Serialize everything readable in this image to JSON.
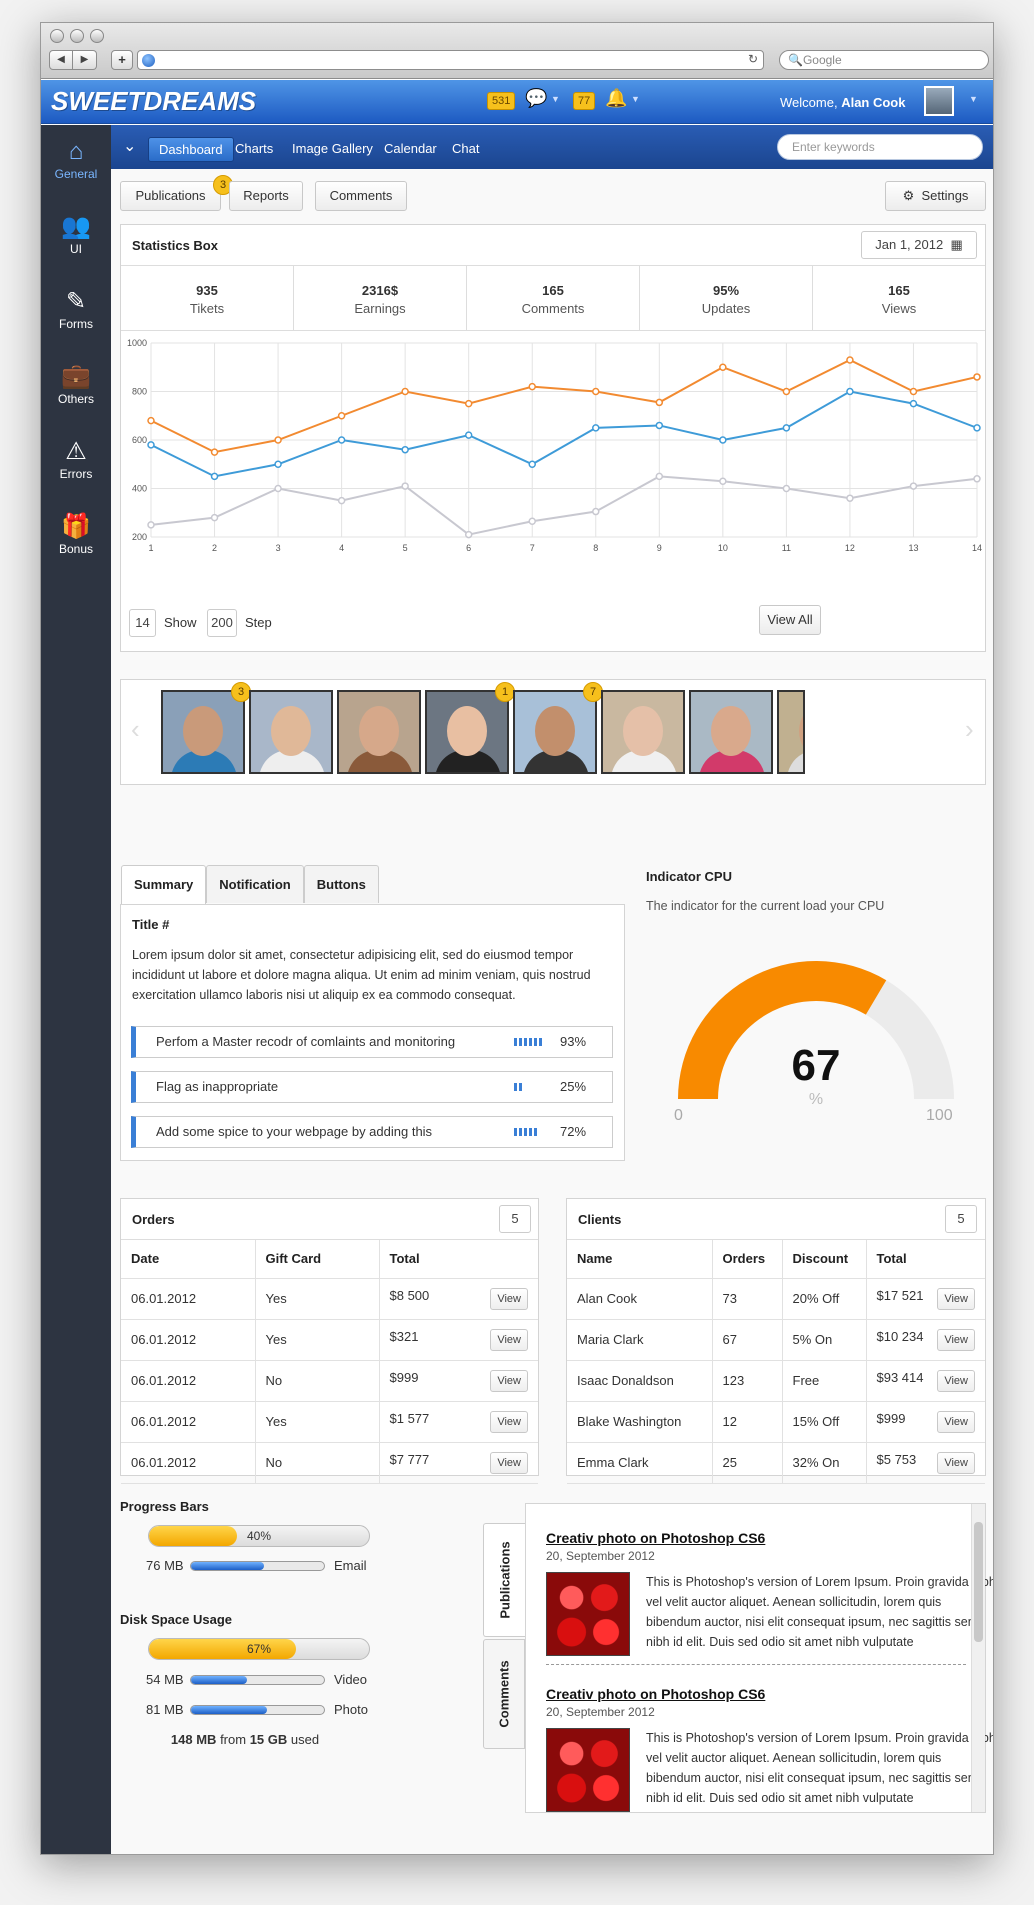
{
  "browser": {
    "search_placeholder": "Google"
  },
  "header": {
    "logo": "SWEETDREAMS",
    "messages_count": "531",
    "alerts_count": "77",
    "welcome": "Welcome,",
    "user_name": "Alan Cook"
  },
  "sidebar": {
    "items": [
      {
        "label": "General",
        "icon": "home-icon"
      },
      {
        "label": "UI",
        "icon": "users-icon"
      },
      {
        "label": "Forms",
        "icon": "edit-icon"
      },
      {
        "label": "Others",
        "icon": "briefcase-icon"
      },
      {
        "label": "Errors",
        "icon": "warning-icon"
      },
      {
        "label": "Bonus",
        "icon": "gift-icon"
      }
    ]
  },
  "nav": {
    "tabs": [
      "Dashboard",
      "Charts",
      "Image Gallery",
      "Calendar",
      "Chat"
    ],
    "search_placeholder": "Enter keywords"
  },
  "toolbar": {
    "publications": "Publications",
    "publications_badge": "3",
    "reports": "Reports",
    "comments": "Comments",
    "settings": "Settings"
  },
  "stats_box": {
    "title": "Statistics Box",
    "date": "Jan 1, 2012",
    "stats": [
      {
        "value": "935",
        "label": "Tikets"
      },
      {
        "value": "2316$",
        "label": "Earnings"
      },
      {
        "value": "165",
        "label": "Comments"
      },
      {
        "value": "95%",
        "label": "Updates"
      },
      {
        "value": "165",
        "label": "Views"
      }
    ],
    "show_value": "14",
    "show_label": "Show",
    "step_value": "200",
    "step_label": "Step",
    "view_all": "View All"
  },
  "chart_data": {
    "type": "line",
    "x": [
      1,
      2,
      3,
      4,
      5,
      6,
      7,
      8,
      9,
      10,
      11,
      12,
      13,
      14
    ],
    "ylim": [
      200,
      1000
    ],
    "yticks": [
      200,
      400,
      600,
      800,
      1000
    ],
    "grid": true,
    "series": [
      {
        "values": [
          680,
          550,
          600,
          700,
          800,
          750,
          820,
          800,
          755,
          900,
          800,
          930,
          800,
          860
        ],
        "color": "#f28a30"
      },
      {
        "values": [
          580,
          450,
          500,
          600,
          560,
          620,
          500,
          650,
          660,
          600,
          650,
          800,
          750,
          650
        ],
        "color": "#3e9bd8"
      },
      {
        "values": [
          250,
          280,
          400,
          350,
          410,
          210,
          265,
          305,
          450,
          430,
          400,
          360,
          410,
          440
        ],
        "color": "#c8c8d0"
      }
    ]
  },
  "gallery": {
    "badges": [
      "3",
      "",
      "",
      "1",
      "7",
      "",
      "",
      ""
    ]
  },
  "tabs_panel": {
    "tabs": [
      "Summary",
      "Notification",
      "Buttons"
    ],
    "title": "Title #",
    "text": "Lorem ipsum dolor sit amet, consectetur adipisicing elit, sed do eiusmod tempor incididunt ut labore et dolore magna aliqua. Ut enim ad minim veniam, quis nostrud exercitation ullamco laboris nisi ut aliquip ex ea commodo consequat.",
    "tasks": [
      {
        "label": "Perfom a Master recodr of comlaints and monitoring",
        "pct": "93%",
        "value": 93
      },
      {
        "label": "Flag as inappropriate",
        "pct": "25%",
        "value": 25
      },
      {
        "label": "Add some spice to your webpage by adding this",
        "pct": "72%",
        "value": 72
      }
    ]
  },
  "cpu": {
    "title": "Indicator CPU",
    "subtitle": "The indicator for the current load your CPU",
    "value": "67",
    "unit": "%",
    "min": "0",
    "max": "100",
    "fill_color": "#f88a00"
  },
  "orders": {
    "title": "Orders",
    "count": "5",
    "headers": [
      "Date",
      "Gift Card",
      "Total"
    ],
    "rows": [
      [
        "06.01.2012",
        "Yes",
        "$8 500"
      ],
      [
        "06.01.2012",
        "Yes",
        "$321"
      ],
      [
        "06.01.2012",
        "No",
        "$999"
      ],
      [
        "06.01.2012",
        "Yes",
        "$1 577"
      ],
      [
        "06.01.2012",
        "No",
        "$7 777"
      ]
    ],
    "view": "View"
  },
  "clients": {
    "title": "Clients",
    "count": "5",
    "headers": [
      "Name",
      "Orders",
      "Discount",
      "Total"
    ],
    "rows": [
      [
        "Alan Cook",
        "73",
        "20% Off",
        "$17 521"
      ],
      [
        "Maria Clark",
        "67",
        "5% On",
        "$10 234"
      ],
      [
        "Isaac Donaldson",
        "123",
        "Free",
        "$93 414"
      ],
      [
        "Blake Washington",
        "12",
        "15% Off",
        "$999"
      ],
      [
        "Emma Clark",
        "25",
        "32% On",
        "$5 753"
      ]
    ],
    "view": "View"
  },
  "progress": {
    "title": "Progress Bars",
    "bar1_pct": "40%",
    "bar1_value": 40,
    "email_size": "76 MB",
    "email_label": "Email",
    "email_value": 55,
    "disk_title": "Disk Space Usage",
    "disk_pct": "67%",
    "disk_value": 67,
    "video_size": "54 MB",
    "video_label": "Video",
    "video_value": 42,
    "photo_size": "81 MB",
    "photo_label": "Photo",
    "photo_value": 57,
    "used_mb": "148 MB",
    "from": "from",
    "total": "15 GB",
    "used": "used"
  },
  "publications": {
    "tabs": [
      "Publications",
      "Comments"
    ],
    "posts": [
      {
        "title": "Creativ photo on Photoshop CS6",
        "date": "20, September 2012",
        "text": "This is Photoshop's version of Lorem Ipsum. Proin gravida nibh vel velit auctor aliquet. Aenean sollicitudin, lorem quis bibendum auctor, nisi elit consequat ipsum, nec sagittis sem nibh id elit. Duis sed odio sit amet nibh vulputate"
      },
      {
        "title": "Creativ photo on Photoshop CS6",
        "date": "20, September 2012",
        "text": "This is Photoshop's version of Lorem Ipsum. Proin gravida nibh vel velit auctor aliquet. Aenean sollicitudin, lorem quis bibendum auctor, nisi elit consequat ipsum, nec sagittis sem nibh id elit. Duis sed odio sit amet nibh vulputate"
      }
    ]
  }
}
